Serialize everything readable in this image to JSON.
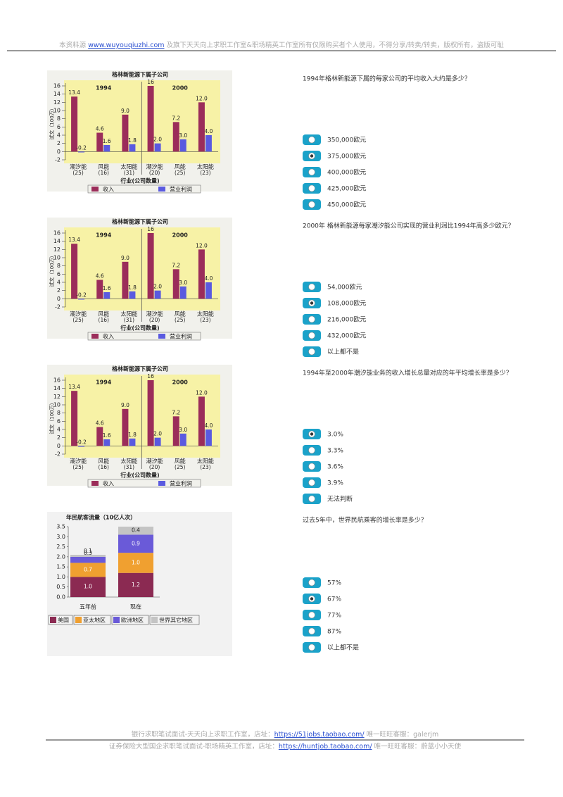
{
  "header": {
    "prefix": "本资料源 ",
    "link": "www.wuyouqiuzhi.com",
    "suffix": " 及旗下天天向上求职工作室&职场精英工作室所有仅限购买者个人使用，不得分享/转卖/转卖，版权所有，盗版可耻"
  },
  "chart_data": [
    {
      "type": "bar",
      "title": "格林新能源下属子公司",
      "ylabel": "试文（100万）",
      "xlabel": "行业(公司数量)",
      "group_labels": [
        "1994",
        "2000"
      ],
      "categories": [
        "潮汐能",
        "风能",
        "太阳能",
        "潮汐能",
        "风能",
        "太阳能"
      ],
      "category_counts": [
        "(25)",
        "(16)",
        "(31)",
        "(20)",
        "(25)",
        "(23)"
      ],
      "series": [
        {
          "name": "收入",
          "color": "#9b2d5a",
          "values": [
            13.4,
            4.6,
            9,
            16,
            7.2,
            12
          ],
          "value_labels": [
            "13.4",
            "4.6",
            "9.0",
            "16",
            "7.2",
            "12.0"
          ]
        },
        {
          "name": "营业利润",
          "color": "#5a5ae0",
          "values": [
            -0.2,
            1.6,
            1.8,
            2,
            3,
            4
          ],
          "value_labels": [
            "-0.2",
            "1.6",
            "1.8",
            "2.0",
            "3.0",
            "4.0"
          ]
        }
      ],
      "ylim": [
        -2,
        16
      ],
      "yticks": [
        -2,
        0,
        2,
        4,
        6,
        8,
        10,
        12,
        14,
        16
      ]
    },
    {
      "type": "bar",
      "title": "格林新能源下属子公司",
      "ylabel": "试文（100万）",
      "xlabel": "行业(公司数量)",
      "group_labels": [
        "1994",
        "2000"
      ],
      "categories": [
        "潮汐能",
        "风能",
        "太阳能",
        "潮汐能",
        "风能",
        "太阳能"
      ],
      "category_counts": [
        "(25)",
        "(16)",
        "(31)",
        "(20)",
        "(25)",
        "(23)"
      ],
      "series": [
        {
          "name": "收入",
          "color": "#9b2d5a",
          "values": [
            13.4,
            4.6,
            9,
            16,
            7.2,
            12
          ],
          "value_labels": [
            "13.4",
            "4.6",
            "9.0",
            "16",
            "7.2",
            "12.0"
          ]
        },
        {
          "name": "营业利润",
          "color": "#5a5ae0",
          "values": [
            -0.2,
            1.6,
            1.8,
            2,
            3,
            4
          ],
          "value_labels": [
            "-0.2",
            "1.6",
            "1.8",
            "2.0",
            "3.0",
            "4.0"
          ]
        }
      ],
      "ylim": [
        -2,
        16
      ],
      "yticks": [
        -2,
        0,
        2,
        4,
        6,
        8,
        10,
        12,
        14,
        16
      ]
    },
    {
      "type": "bar",
      "title": "格林新能源下属子公司",
      "ylabel": "试文（100万）",
      "xlabel": "行业(公司数量)",
      "group_labels": [
        "1994",
        "2000"
      ],
      "categories": [
        "潮汐能",
        "风能",
        "太阳能",
        "潮汐能",
        "风能",
        "太阳能"
      ],
      "category_counts": [
        "(25)",
        "(16)",
        "(31)",
        "(20)",
        "(25)",
        "(23)"
      ],
      "series": [
        {
          "name": "收入",
          "color": "#9b2d5a",
          "values": [
            13.4,
            4.6,
            9,
            16,
            7.2,
            12
          ],
          "value_labels": [
            "13.4",
            "4.6",
            "9.0",
            "16",
            "7.2",
            "12.0"
          ]
        },
        {
          "name": "营业利润",
          "color": "#5a5ae0",
          "values": [
            -0.2,
            1.6,
            1.8,
            2,
            3,
            4
          ],
          "value_labels": [
            "-0.2",
            "1.6",
            "1.8",
            "2.0",
            "3.0",
            "4.0"
          ]
        }
      ],
      "ylim": [
        -2,
        16
      ],
      "yticks": [
        -2,
        0,
        2,
        4,
        6,
        8,
        10,
        12,
        14,
        16
      ]
    },
    {
      "type": "stacked_bar",
      "title": "年民航客流量（10亿人次）",
      "categories": [
        "五年前",
        "现在"
      ],
      "series": [
        {
          "name": "美国",
          "color": "#8b2a52",
          "values": [
            1,
            1.2
          ],
          "value_labels": [
            "1.0",
            "1.2"
          ]
        },
        {
          "name": "亚太地区",
          "color": "#f0a030",
          "values": [
            0.7,
            1
          ],
          "value_labels": [
            "0.7",
            "1.0"
          ]
        },
        {
          "name": "欧洲地区",
          "color": "#6a5ad8",
          "values": [
            0.3,
            0.9
          ],
          "value_labels": [
            "0.3",
            "0.9"
          ]
        },
        {
          "name": "世界其它地区",
          "color": "#c4c4c4",
          "values": [
            0.1,
            0.4
          ],
          "value_labels": [
            "0.1",
            "0.4"
          ]
        }
      ],
      "ylim": [
        0,
        3.5
      ],
      "yticks": [
        {
          "value": 0,
          "label": "0.0"
        },
        0.5,
        {
          "value": 1,
          "label": "1.0"
        },
        1.5,
        {
          "value": 2,
          "label": "2.0"
        },
        2.5,
        {
          "value": 3,
          "label": "3.0"
        },
        3.5
      ]
    }
  ],
  "questions": [
    {
      "text": "1994年格林新能源下属的每家公司的平均收入大约是多少？",
      "options": [
        "350,000欧元",
        "375,000欧元",
        "400,000欧元",
        "425,000欧元",
        "450,000欧元"
      ],
      "selected": 1
    },
    {
      "text": "2000年 格林新能源每家潮汐能公司实现的营业利润比1994年高多少欧元？",
      "options": [
        "54,000欧元",
        "108,000欧元",
        "216,000欧元",
        "432,000欧元",
        "以上都不是"
      ],
      "selected": 1
    },
    {
      "text": "1994年至2000年潮汐能业务的收入增长总量对应的年平均增长率是多少？",
      "options": [
        "3.0%",
        "3.3%",
        "3.6%",
        "3.9%",
        "无法判断"
      ],
      "selected": 0
    },
    {
      "text": "过去5年中，世界民航乘客的增长率是多少？",
      "options": [
        "57%",
        "67%",
        "77%",
        "87%",
        "以上都不是"
      ],
      "selected": 1
    }
  ],
  "footer": [
    {
      "prefix": "银行求职笔试面试-天天向上求职工作室，店址：",
      "link": "https://51jobs.taobao.com/",
      "suffix": " 唯一旺旺客服：galerjm"
    },
    {
      "prefix": "证券保险大型国企求职笔试面试-职场精英工作室，店址：",
      "link": "https://huntjob.taobao.com/",
      "suffix": " 唯一旺旺客服：蔚蓝小小天使"
    }
  ]
}
